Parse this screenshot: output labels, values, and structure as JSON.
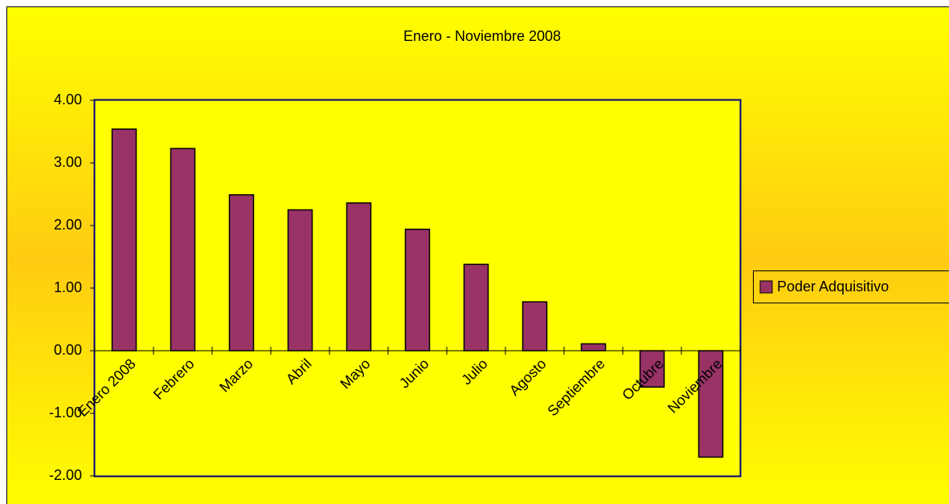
{
  "chart_data": {
    "type": "bar",
    "title": "Enero - Noviembre 2008",
    "categories": [
      "Enero 2008",
      "Febrero",
      "Marzo",
      "Abril",
      "Mayo",
      "Junio",
      "Julio",
      "Agosto",
      "Septiembre",
      "Octubre",
      "Noviembre"
    ],
    "series": [
      {
        "name": "Poder Adquisitivo",
        "color": "#993366",
        "values": [
          3.54,
          3.23,
          2.49,
          2.25,
          2.36,
          1.94,
          1.38,
          0.78,
          0.11,
          -0.58,
          -1.7
        ]
      }
    ],
    "ylim": [
      -2,
      4
    ],
    "yticks": [
      {
        "value": -2,
        "label": "-2.00"
      },
      {
        "value": -1,
        "label": "-1.00"
      },
      {
        "value": 0,
        "label": "0.00"
      },
      {
        "value": 1,
        "label": "1.00"
      },
      {
        "value": 2,
        "label": "2.00"
      },
      {
        "value": 3,
        "label": "3.00"
      },
      {
        "value": 4,
        "label": "4.00"
      }
    ],
    "legend": "right"
  }
}
